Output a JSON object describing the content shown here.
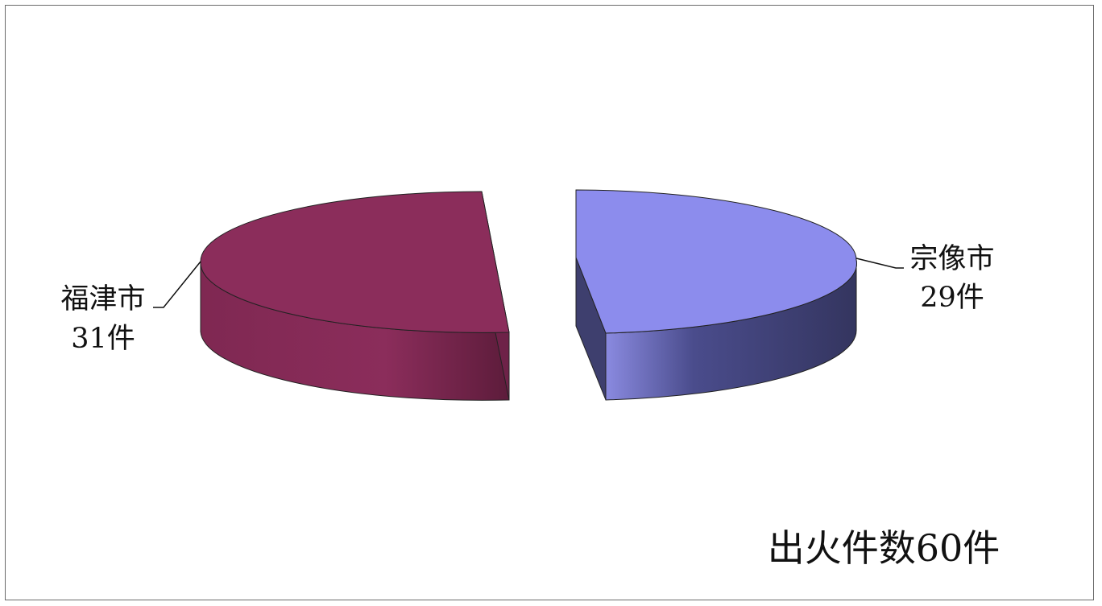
{
  "chart_data": {
    "type": "pie",
    "style": "3d-exploded",
    "categories": [
      "宗像市",
      "福津市"
    ],
    "series": [
      {
        "values": [
          29,
          31
        ]
      }
    ],
    "slices": [
      {
        "label": "宗像市",
        "value_label": "29件",
        "value": 29,
        "color": "#8c8ced"
      },
      {
        "label": "福津市",
        "value_label": "31件",
        "value": 31,
        "color": "#8b2d5b"
      }
    ],
    "total_annotation": "出火件数60件",
    "legend": "none"
  }
}
